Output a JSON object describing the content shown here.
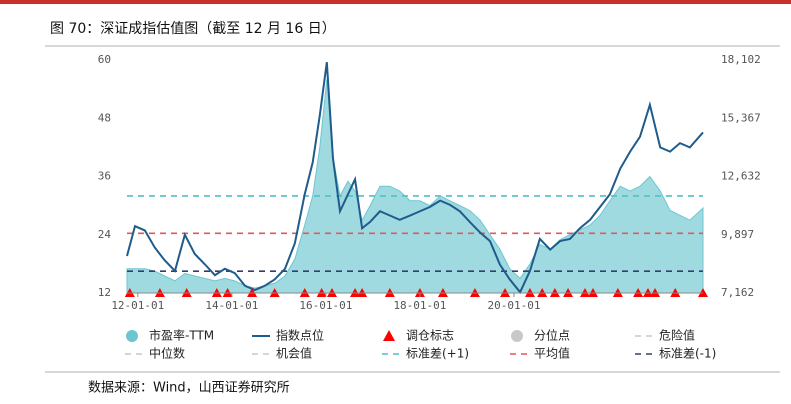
{
  "chart_data": {
    "type": "combo",
    "title": "图 70：深证成指估值图（截至 12 月 16 日）",
    "source": "数据来源：Wind，山西证券研究所",
    "x": [
      2011.77,
      2011.94,
      2012.15,
      2012.36,
      2012.57,
      2012.79,
      2013.0,
      2013.21,
      2013.43,
      2013.64,
      2013.85,
      2014.06,
      2014.28,
      2014.49,
      2014.7,
      2014.91,
      2015.13,
      2015.34,
      2015.55,
      2015.72,
      2015.87,
      2016.02,
      2016.15,
      2016.3,
      2016.47,
      2016.62,
      2016.77,
      2016.94,
      2017.15,
      2017.36,
      2017.57,
      2017.79,
      2018.0,
      2018.21,
      2018.43,
      2018.64,
      2018.85,
      2019.06,
      2019.28,
      2019.49,
      2019.7,
      2019.91,
      2020.13,
      2020.34,
      2020.55,
      2020.77,
      2020.98,
      2021.19,
      2021.4,
      2021.62,
      2021.83,
      2022.04,
      2022.26,
      2022.47,
      2022.68,
      2022.89,
      2023.11,
      2023.32,
      2023.53,
      2023.74,
      2024.02
    ],
    "xlim": [
      2011.77,
      2024.02
    ],
    "xticks": [
      {
        "value": 2012,
        "label": "12-01-01"
      },
      {
        "value": 2014,
        "label": "14-01-01"
      },
      {
        "value": 2016,
        "label": "16-01-01"
      },
      {
        "value": 2018,
        "label": "18-01-01"
      },
      {
        "value": 2020,
        "label": "20-01-01"
      }
    ],
    "ylim": [
      12,
      60
    ],
    "yticks": [
      12,
      24,
      36,
      48,
      60
    ],
    "y2lim": [
      7162,
      18102
    ],
    "y2ticks": [
      {
        "value": 7162,
        "label": "7,162"
      },
      {
        "value": 9897,
        "label": "9,897"
      },
      {
        "value": 12632,
        "label": "12,632"
      },
      {
        "value": 15367,
        "label": "15,367"
      },
      {
        "value": 18102,
        "label": "18,102"
      }
    ],
    "series": [
      {
        "name": "市盈率-TTM",
        "type": "area",
        "color": "#8fd3dc",
        "values": [
          17,
          17,
          17,
          16.5,
          15.5,
          14.5,
          16,
          15.5,
          15,
          14.5,
          15,
          14.5,
          13.5,
          13,
          13.5,
          14,
          15.5,
          19,
          26,
          32,
          42,
          56,
          40,
          32,
          35,
          33,
          27,
          30,
          34,
          34,
          33,
          31,
          31,
          30,
          32,
          31,
          30,
          29,
          27,
          24,
          21,
          17,
          15,
          18,
          22,
          21,
          23,
          24,
          25,
          26,
          28,
          31,
          34,
          33,
          34,
          36,
          33,
          29,
          28,
          27,
          29.5
        ]
      },
      {
        "name": "指数点位",
        "type": "line",
        "axis": "y2",
        "color": "#1f5c8c",
        "values": [
          8900,
          10300,
          10100,
          9300,
          8700,
          8200,
          9900,
          9000,
          8500,
          8000,
          8300,
          8100,
          7500,
          7300,
          7500,
          7800,
          8300,
          9500,
          11800,
          13300,
          15500,
          18000,
          13500,
          11000,
          11800,
          12500,
          10200,
          10500,
          11000,
          10800,
          10600,
          10800,
          11000,
          11200,
          11500,
          11300,
          11000,
          10500,
          10000,
          9600,
          8500,
          7800,
          7200,
          8200,
          9700,
          9200,
          9600,
          9700,
          10200,
          10600,
          11200,
          11800,
          13000,
          13800,
          14500,
          16000,
          14000,
          13800,
          14200,
          14000,
          14700
        ]
      },
      {
        "name": "调仓标志",
        "type": "marker",
        "color": "#ff0000",
        "x": [
          2011.83,
          2012.47,
          2013.04,
          2013.68,
          2013.91,
          2014.43,
          2014.91,
          2015.55,
          2015.91,
          2016.13,
          2016.62,
          2016.77,
          2017.36,
          2018.0,
          2018.49,
          2019.17,
          2019.81,
          2020.34,
          2020.6,
          2020.87,
          2021.15,
          2021.51,
          2021.68,
          2022.21,
          2022.64,
          2022.85,
          2023.0,
          2023.43,
          2024.02
        ],
        "values": [
          12,
          12,
          12,
          12,
          12,
          12,
          12,
          12,
          12,
          12,
          12,
          12,
          12,
          12,
          12,
          12,
          12,
          12,
          12,
          12,
          12,
          12,
          12,
          12,
          12,
          12,
          12,
          12,
          12
        ]
      },
      {
        "name": "分位点",
        "type": "dot",
        "color": "#c8c8c8"
      },
      {
        "name": "危险值",
        "type": "hline",
        "color": "#c8c8c8"
      },
      {
        "name": "中位数",
        "type": "hline",
        "color": "#c8c8c8"
      },
      {
        "name": "机会值",
        "type": "hline",
        "color": "#c8c8c8"
      },
      {
        "name": "标准差(+1)",
        "type": "hline",
        "color": "#4fc1c6",
        "value": 32
      },
      {
        "name": "平均值",
        "type": "hline",
        "color": "#e05a5a",
        "value": 24.3
      },
      {
        "name": "标准差(-1)",
        "type": "hline",
        "color": "#333e6e",
        "value": 16.5
      }
    ]
  }
}
